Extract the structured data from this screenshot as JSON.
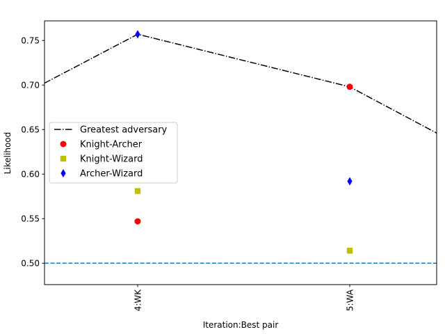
{
  "chart_data": {
    "type": "scatter",
    "title": "",
    "xlabel": "Iteration:Best pair",
    "ylabel": "Likelihood",
    "categories": [
      "4:WK",
      "5:WA"
    ],
    "ylim": [
      0.476,
      0.772
    ],
    "yticks": [
      0.5,
      0.55,
      0.6,
      0.65,
      0.7,
      0.75
    ],
    "ytick_labels": [
      "0.50",
      "0.55",
      "0.60",
      "0.65",
      "0.70",
      "0.75"
    ],
    "grid": false,
    "legend_position": "center-left",
    "greatest_adversary": {
      "name": "Greatest adversary",
      "color": "#000000",
      "style": "dash-dot",
      "points": [
        {
          "x": 3.56,
          "y": 0.702
        },
        {
          "x": 4,
          "y": 0.757
        },
        {
          "x": 5,
          "y": 0.698
        },
        {
          "x": 5.41,
          "y": 0.646
        }
      ]
    },
    "series": [
      {
        "name": "Knight-Archer",
        "marker": "circle",
        "color": "#ff0000",
        "x": [
          4,
          5
        ],
        "values": [
          0.547,
          0.698
        ]
      },
      {
        "name": "Knight-Wizard",
        "marker": "square",
        "color": "#bfbf00",
        "x": [
          4,
          5
        ],
        "values": [
          0.581,
          0.514
        ]
      },
      {
        "name": "Archer-Wizard",
        "marker": "diamond",
        "color": "#0000ff",
        "x": [
          4,
          5
        ],
        "values": [
          0.757,
          0.592
        ]
      }
    ],
    "reference_line": {
      "y": 0.5,
      "color": "#1f77b4",
      "style": "dashed"
    }
  }
}
